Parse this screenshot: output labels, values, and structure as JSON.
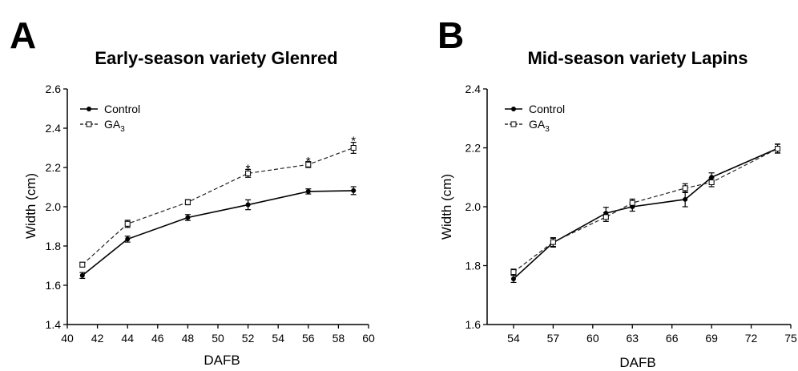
{
  "chart_data": [
    {
      "type": "line",
      "panel": "A",
      "title": "Early-season variety Glenred",
      "xlabel": "DAFB",
      "ylabel": "Width (cm)",
      "xlim": [
        40,
        60
      ],
      "ylim": [
        1.4,
        2.6
      ],
      "xticks": [
        "40",
        "42",
        "44",
        "46",
        "48",
        "50",
        "52",
        "54",
        "56",
        "58",
        "60"
      ],
      "yticks": [
        "1.4",
        "1.6",
        "1.8",
        "2.0",
        "2.2",
        "2.4",
        "2.6"
      ],
      "legend_position": "top-left",
      "grid": false,
      "x": [
        41,
        44,
        48,
        52,
        56,
        59
      ],
      "series": [
        {
          "name": "Control",
          "style": "solid",
          "marker": "filled-circle",
          "values": [
            1.65,
            1.835,
            1.945,
            2.01,
            2.078,
            2.082
          ],
          "errors": [
            0.015,
            0.015,
            0.015,
            0.025,
            0.013,
            0.02
          ]
        },
        {
          "name": "GA3",
          "name_main": "GA",
          "name_sub": "3",
          "style": "dashed",
          "marker": "open-square",
          "values": [
            1.705,
            1.913,
            2.023,
            2.17,
            2.215,
            2.3
          ],
          "errors": [
            0.012,
            0.018,
            0.013,
            0.02,
            0.015,
            0.028
          ]
        }
      ],
      "annotations": [
        {
          "text": "*",
          "x": 52,
          "y": 2.215
        },
        {
          "text": "*",
          "x": 56,
          "y": 2.254
        },
        {
          "text": "*",
          "x": 59,
          "y": 2.357
        }
      ]
    },
    {
      "type": "line",
      "panel": "B",
      "title": "Mid-season variety Lapins",
      "xlabel": "DAFB",
      "ylabel": "Width (cm)",
      "xlim": [
        52,
        75
      ],
      "ylim": [
        1.6,
        2.4
      ],
      "xticks": [
        "54",
        "57",
        "60",
        "63",
        "66",
        "69",
        "72",
        "75"
      ],
      "xtick_values": [
        54,
        57,
        60,
        63,
        66,
        69,
        72,
        75
      ],
      "yticks": [
        "1.6",
        "1.8",
        "2.0",
        "2.2",
        "2.4"
      ],
      "legend_position": "top-left",
      "grid": false,
      "x": [
        54,
        57,
        61,
        63,
        67,
        69,
        74
      ],
      "series": [
        {
          "name": "Control",
          "style": "solid",
          "marker": "filled-circle",
          "values": [
            1.755,
            1.878,
            1.978,
            2.0,
            2.025,
            2.1,
            2.198
          ],
          "errors": [
            0.012,
            0.015,
            0.02,
            0.015,
            0.025,
            0.015,
            0.015
          ]
        },
        {
          "name": "GA3",
          "name_main": "GA",
          "name_sub": "3",
          "style": "dashed",
          "marker": "open-square",
          "values": [
            1.778,
            1.88,
            1.965,
            2.013,
            2.063,
            2.083,
            2.197
          ],
          "errors": [
            0.01,
            0.015,
            0.015,
            0.013,
            0.015,
            0.015,
            0.015
          ]
        }
      ]
    }
  ]
}
